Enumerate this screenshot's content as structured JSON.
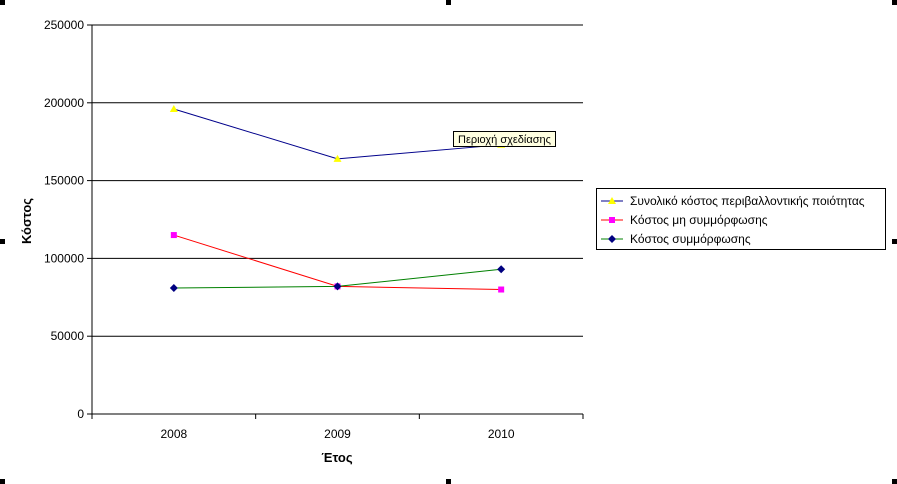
{
  "chart_data": {
    "type": "line",
    "categories": [
      "2008",
      "2009",
      "2010"
    ],
    "series": [
      {
        "name": "Συνολικό κόστος περιβαλλοντικής ποιότητας",
        "values": [
          196000,
          164000,
          173000
        ],
        "color": "#00008b",
        "marker_color": "#ffff00",
        "marker": "triangle"
      },
      {
        "name": "Κόστος μη συμμόρφωσης",
        "values": [
          115000,
          82000,
          80000
        ],
        "color": "#ff0000",
        "marker_color": "#ff00ff",
        "marker": "square"
      },
      {
        "name": "Κόστος συμμόρφωσης",
        "values": [
          81000,
          82000,
          93000
        ],
        "color": "#008000",
        "marker_color": "#000080",
        "marker": "diamond"
      }
    ],
    "xlabel": "Έτος",
    "ylabel": "Κόστος",
    "ylim": [
      0,
      250000
    ],
    "yticks": [
      "0",
      "50000",
      "100000",
      "150000",
      "200000",
      "250000"
    ],
    "grid": true,
    "legend_position": "right"
  },
  "tooltip": {
    "text": "Περιοχή σχεδίασης"
  }
}
